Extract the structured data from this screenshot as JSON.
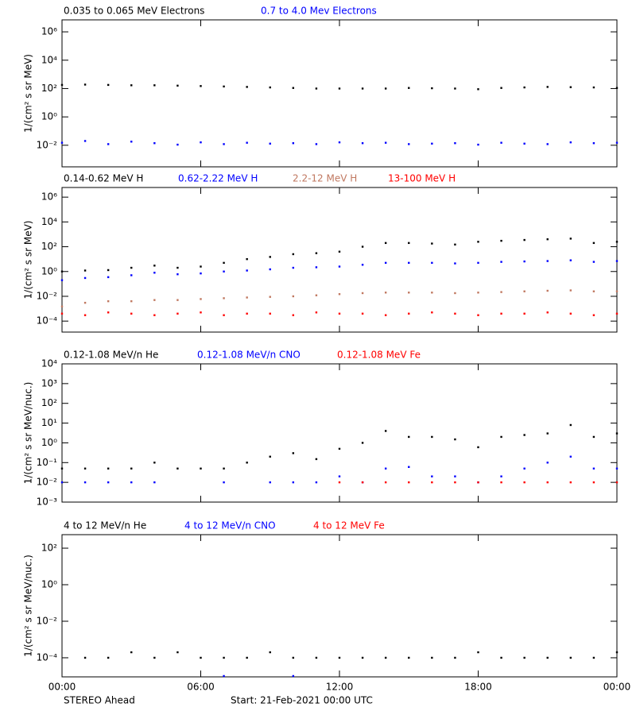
{
  "chart_data": [
    {
      "type": "scatter",
      "log_scale": true,
      "ylabel": "1/(cm² s sr MeV)",
      "x": [
        0,
        1,
        2,
        3,
        4,
        5,
        6,
        7,
        8,
        9,
        10,
        11,
        12,
        13,
        14,
        15,
        16,
        17,
        18,
        19,
        20,
        21,
        22,
        23,
        24
      ],
      "xlim": [
        0,
        24
      ],
      "xticks": [
        0,
        6,
        12,
        18,
        24
      ],
      "ylim": [
        0.0003,
        7000000
      ],
      "yticks": [
        {
          "value": 0.01,
          "label": "10⁻²"
        },
        {
          "value": 1,
          "label": "10⁰"
        },
        {
          "value": 100,
          "label": "10²"
        },
        {
          "value": 10000,
          "label": "10⁴"
        },
        {
          "value": 1000000,
          "label": "10⁶"
        }
      ],
      "series": [
        {
          "name": "0.035 to 0.065 MeV Electrons",
          "color": "#000000",
          "values": [
            180,
            190,
            180,
            170,
            170,
            160,
            150,
            140,
            130,
            120,
            110,
            100,
            100,
            100,
            100,
            110,
            105,
            100,
            90,
            110,
            120,
            130,
            125,
            120,
            110
          ]
        },
        {
          "name": "0.7 to 4.0 Mev Electrons",
          "color": "#0000ff",
          "values": [
            0.015,
            0.02,
            0.012,
            0.018,
            0.014,
            0.011,
            0.016,
            0.012,
            0.015,
            0.013,
            0.014,
            0.012,
            0.016,
            0.014,
            0.015,
            0.012,
            0.013,
            0.014,
            0.011,
            0.015,
            0.013,
            0.012,
            0.016,
            0.014,
            0.015
          ]
        }
      ]
    },
    {
      "type": "scatter",
      "log_scale": true,
      "ylabel": "1/(cm² s sr MeV)",
      "x": [
        0,
        1,
        2,
        3,
        4,
        5,
        6,
        7,
        8,
        9,
        10,
        11,
        12,
        13,
        14,
        15,
        16,
        17,
        18,
        19,
        20,
        21,
        22,
        23,
        24
      ],
      "xlim": [
        0,
        24
      ],
      "xticks": [
        0,
        6,
        12,
        18,
        24
      ],
      "ylim": [
        1.3e-05,
        6000000
      ],
      "yticks": [
        {
          "value": 0.0001,
          "label": "10⁻⁴"
        },
        {
          "value": 0.01,
          "label": "10⁻²"
        },
        {
          "value": 1,
          "label": "10⁰"
        },
        {
          "value": 100,
          "label": "10²"
        },
        {
          "value": 10000,
          "label": "10⁴"
        },
        {
          "value": 1000000,
          "label": "10⁶"
        }
      ],
      "series": [
        {
          "name": "0.14-0.62 MeV H",
          "color": "#000000",
          "values": [
            1,
            1.2,
            1.3,
            2,
            3,
            2,
            2.5,
            5,
            10,
            15,
            25,
            30,
            40,
            100,
            200,
            200,
            180,
            150,
            250,
            300,
            350,
            400,
            450,
            200,
            250
          ]
        },
        {
          "name": "0.62-2.22 MeV H",
          "color": "#0000ff",
          "values": [
            0.2,
            0.3,
            0.35,
            0.5,
            0.8,
            0.6,
            0.7,
            1,
            1.2,
            1.5,
            2,
            2.2,
            2.5,
            3.5,
            5,
            5,
            5,
            4.5,
            5,
            6,
            6.5,
            7,
            8,
            6,
            7
          ]
        },
        {
          "name": "2.2-12 MeV H",
          "color": "#c07860",
          "values": [
            0.0015,
            0.003,
            0.004,
            0.004,
            0.005,
            0.005,
            0.006,
            0.007,
            0.008,
            0.009,
            0.01,
            0.012,
            0.015,
            0.018,
            0.02,
            0.02,
            0.02,
            0.018,
            0.02,
            0.022,
            0.025,
            0.028,
            0.03,
            0.025,
            0.025
          ]
        },
        {
          "name": "13-100 MeV H",
          "color": "#ff0000",
          "values": [
            0.0004,
            0.0003,
            0.0005,
            0.0004,
            0.0003,
            0.0004,
            0.0005,
            0.0003,
            0.0004,
            0.0004,
            0.0003,
            0.0005,
            0.0004,
            0.0004,
            0.0003,
            0.0004,
            0.0005,
            0.0004,
            0.0003,
            0.0004,
            0.0004,
            0.0005,
            0.0004,
            0.0003,
            0.0004
          ]
        }
      ]
    },
    {
      "type": "scatter",
      "log_scale": true,
      "ylabel": "1/(cm² s sr MeV/nuc.)",
      "x": [
        0,
        1,
        2,
        3,
        4,
        5,
        6,
        7,
        8,
        9,
        10,
        11,
        12,
        13,
        14,
        15,
        16,
        17,
        18,
        19,
        20,
        21,
        22,
        23,
        24
      ],
      "xlim": [
        0,
        24
      ],
      "xticks": [
        0,
        6,
        12,
        18,
        24
      ],
      "ylim": [
        0.001,
        10000
      ],
      "yticks": [
        {
          "value": 0.001,
          "label": "10⁻³"
        },
        {
          "value": 0.01,
          "label": "10⁻²"
        },
        {
          "value": 0.1,
          "label": "10⁻¹"
        },
        {
          "value": 1,
          "label": "10⁰"
        },
        {
          "value": 10,
          "label": "10¹"
        },
        {
          "value": 100,
          "label": "10²"
        },
        {
          "value": 1000,
          "label": "10³"
        },
        {
          "value": 10000,
          "label": "10⁴"
        }
      ],
      "series": [
        {
          "name": "0.12-1.08 MeV/n He",
          "color": "#000000",
          "values": [
            0.05,
            0.05,
            0.05,
            0.05,
            0.1,
            0.05,
            0.05,
            0.05,
            0.1,
            0.2,
            0.3,
            0.15,
            0.5,
            1,
            4,
            2,
            2,
            1.5,
            0.6,
            2,
            2.5,
            3,
            8,
            2,
            3
          ]
        },
        {
          "name": "0.12-1.08 MeV/n CNO",
          "color": "#0000ff",
          "values": [
            0.01,
            0.01,
            0.01,
            0.01,
            0.01,
            null,
            null,
            0.01,
            null,
            0.01,
            0.01,
            0.01,
            0.02,
            0.01,
            0.05,
            0.06,
            0.02,
            0.02,
            0.01,
            0.02,
            0.05,
            0.1,
            0.2,
            0.05,
            0.05
          ]
        },
        {
          "name": "0.12-1.08 MeV Fe",
          "color": "#ff0000",
          "values": [
            null,
            null,
            null,
            null,
            null,
            null,
            null,
            null,
            null,
            null,
            null,
            null,
            0.01,
            0.01,
            0.01,
            0.01,
            0.01,
            0.01,
            0.01,
            0.01,
            0.01,
            0.01,
            0.01,
            0.01,
            0.01
          ]
        }
      ]
    },
    {
      "type": "scatter",
      "log_scale": true,
      "ylabel": "1/(cm² s sr MeV/nuc.)",
      "x": [
        0,
        1,
        2,
        3,
        4,
        5,
        6,
        7,
        8,
        9,
        10,
        11,
        12,
        13,
        14,
        15,
        16,
        17,
        18,
        19,
        20,
        21,
        22,
        23,
        24
      ],
      "xlim": [
        0,
        24
      ],
      "xticks": [
        {
          "value": 0,
          "label": "00:00"
        },
        {
          "value": 6,
          "label": "06:00"
        },
        {
          "value": 12,
          "label": "12:00"
        },
        {
          "value": 18,
          "label": "18:00"
        },
        {
          "value": 24,
          "label": "00:00"
        }
      ],
      "ylim": [
        9e-06,
        550
      ],
      "yticks": [
        {
          "value": 0.0001,
          "label": "10⁻⁴"
        },
        {
          "value": 0.01,
          "label": "10⁻²"
        },
        {
          "value": 1,
          "label": "10⁰"
        },
        {
          "value": 100,
          "label": "10²"
        }
      ],
      "series": [
        {
          "name": "4 to 12 MeV/n He",
          "color": "#000000",
          "values": [
            null,
            0.0001,
            0.0001,
            0.0002,
            0.0001,
            0.0002,
            0.0001,
            0.0001,
            0.0001,
            0.0002,
            0.0001,
            0.0001,
            0.0001,
            0.0001,
            0.0001,
            0.0001,
            0.0001,
            0.0001,
            0.0002,
            0.0001,
            0.0001,
            0.0001,
            0.0001,
            0.0001,
            0.0002
          ]
        },
        {
          "name": "4 to 12 MeV/n CNO",
          "color": "#0000ff",
          "values": [
            null,
            null,
            null,
            null,
            null,
            null,
            null,
            1e-05,
            null,
            null,
            1e-05,
            null,
            null,
            null,
            null,
            null,
            null,
            null,
            null,
            null,
            null,
            null,
            null,
            null,
            null
          ]
        },
        {
          "name": "4 to 12 MeV Fe",
          "color": "#ff0000",
          "values": [
            null,
            null,
            null,
            null,
            null,
            null,
            null,
            null,
            null,
            null,
            null,
            null,
            null,
            null,
            null,
            null,
            null,
            null,
            null,
            null,
            null,
            null,
            null,
            null,
            null
          ]
        }
      ]
    }
  ],
  "footer": {
    "spacecraft": "STEREO Ahead",
    "start": "Start: 21-Feb-2021 00:00 UTC"
  }
}
